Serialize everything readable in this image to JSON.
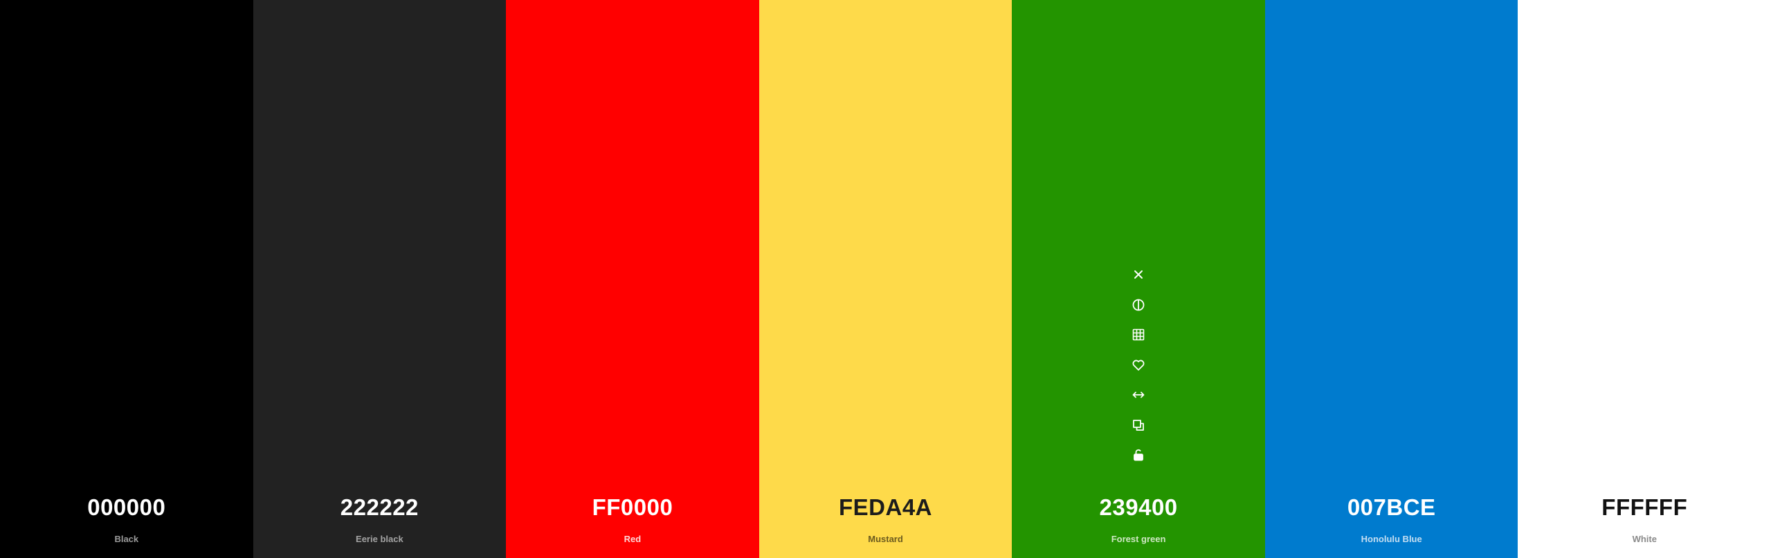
{
  "swatches": [
    {
      "hex": "000000",
      "name": "Black",
      "color": "#000000",
      "hex_color": "#ffffff",
      "name_color": "#9a9a9a"
    },
    {
      "hex": "222222",
      "name": "Eerie black",
      "color": "#222222",
      "hex_color": "#ffffff",
      "name_color": "#a3a3a3"
    },
    {
      "hex": "FF0000",
      "name": "Red",
      "color": "#ff0000",
      "hex_color": "#ffffff",
      "name_color": "#ffd6d6"
    },
    {
      "hex": "FEDA4A",
      "name": "Mustard",
      "color": "#feda4a",
      "hex_color": "#1c1c1c",
      "name_color": "#6b5a1e"
    },
    {
      "hex": "239400",
      "name": "Forest green",
      "color": "#239400",
      "hex_color": "#ffffff",
      "name_color": "#cfe8c4"
    },
    {
      "hex": "007BCE",
      "name": "Honolulu Blue",
      "color": "#007bce",
      "hex_color": "#ffffff",
      "name_color": "#c4def2"
    },
    {
      "hex": "FFFFFF",
      "name": "White",
      "color": "#ffffff",
      "hex_color": "#111111",
      "name_color": "#8a8a8a"
    }
  ],
  "hover_toolbar": {
    "swatch_index": 4,
    "icon_color": "#ffffff",
    "icons": [
      "remove-icon",
      "contrast-icon",
      "shades-icon",
      "favorite-icon",
      "drag-icon",
      "copy-icon",
      "unlock-icon"
    ]
  }
}
